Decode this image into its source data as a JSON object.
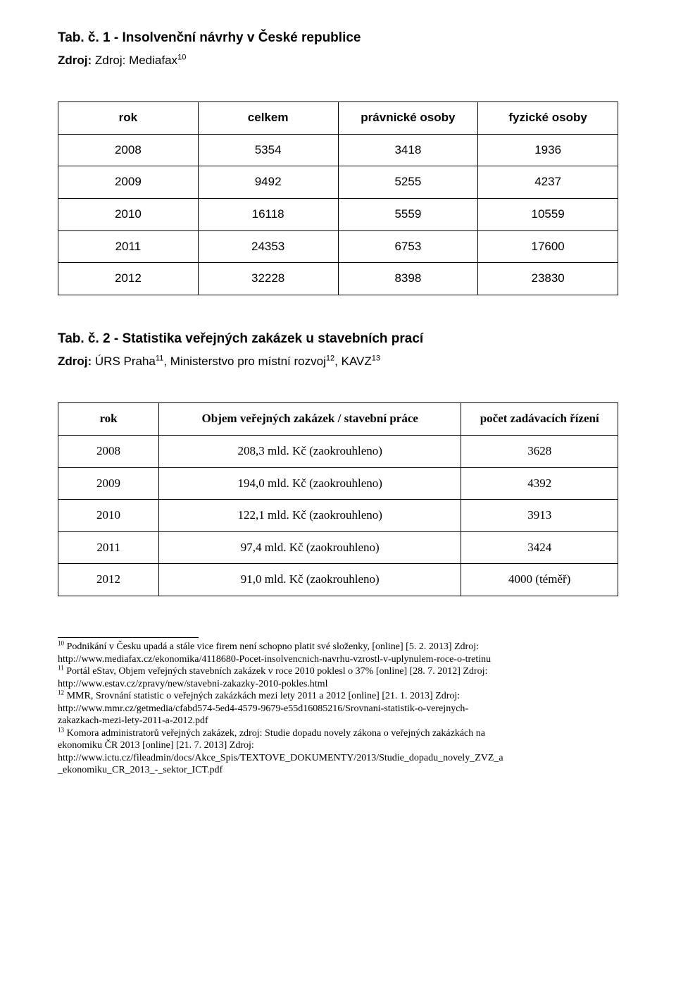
{
  "section1": {
    "heading": "Tab. č. 1 - Insolvenční návrhy v České republice",
    "source_label": "Zdroj:",
    "source_rest": "Zdroj: Mediafax",
    "source_sup": "10"
  },
  "table1": {
    "headers": [
      "rok",
      "celkem",
      "právnické osoby",
      "fyzické osoby"
    ],
    "rows": [
      [
        "2008",
        "5354",
        "3418",
        "1936"
      ],
      [
        "2009",
        "9492",
        "5255",
        "4237"
      ],
      [
        "2010",
        "16118",
        "5559",
        "10559"
      ],
      [
        "2011",
        "24353",
        "6753",
        "17600"
      ],
      [
        "2012",
        "32228",
        "8398",
        "23830"
      ]
    ]
  },
  "section2": {
    "heading": "Tab. č. 2 - Statistika veřejných zakázek u stavebních prací",
    "source_label": "Zdroj:",
    "source_rest_a": "ÚRS Praha",
    "source_sup_a": "11",
    "source_rest_b": ", Ministerstvo pro místní rozvoj",
    "source_sup_b": "12",
    "source_rest_c": ", KAVZ",
    "source_sup_c": "13"
  },
  "table2": {
    "headers": [
      "rok",
      "Objem veřejných zakázek / stavební práce",
      "počet zadávacích řízení"
    ],
    "rows": [
      [
        "2008",
        "208,3 mld. Kč (zaokrouhleno)",
        "3628"
      ],
      [
        "2009",
        "194,0 mld. Kč (zaokrouhleno)",
        "4392"
      ],
      [
        "2010",
        "122,1 mld. Kč (zaokrouhleno)",
        "3913"
      ],
      [
        "2011",
        "97,4 mld. Kč (zaokrouhleno)",
        "3424"
      ],
      [
        "2012",
        "91,0 mld. Kč (zaokrouhleno)",
        "4000 (téměř)"
      ]
    ],
    "col_widths": [
      "18%",
      "54%",
      "28%"
    ]
  },
  "footnotes": {
    "f10_sup": "10",
    "f10_a": " Podnikání v Česku upadá a stále vice firem není schopno platit své složenky, [online] [5. 2. 2013] Zdroj:",
    "f10_b": "http://www.mediafax.cz/ekonomika/4118680-Pocet-insolvencnich-navrhu-vzrostl-v-uplynulem-roce-o-tretinu",
    "f11_sup": "11",
    "f11_a": " Portál eStav, Objem veřejných stavebních zakázek v roce 2010 poklesl o 37% [online] [28. 7. 2012] Zdroj:",
    "f11_b": "http://www.estav.cz/zpravy/new/stavebni-zakazky-2010-pokles.html",
    "f12_sup": "12",
    "f12_a": " MMR, Srovnání statistic o veřejných zakázkách mezi lety 2011 a 2012 [online] [21. 1. 2013] Zdroj:",
    "f12_b": "http://www.mmr.cz/getmedia/cfabd574-5ed4-4579-9679-e55d16085216/Srovnani-statistik-o-verejnych-",
    "f12_c": "zakazkach-mezi-lety-2011-a-2012.pdf",
    "f13_sup": "13",
    "f13_a": " Komora administratorů veřejných zakázek, zdroj: Studie dopadu novely zákona o veřejných zakázkách na",
    "f13_b": "ekonomiku ČR 2013 [online] [21. 7. 2013] Zdroj:",
    "f13_c": "http://www.ictu.cz/fileadmin/docs/Akce_Spis/TEXTOVE_DOKUMENTY/2013/Studie_dopadu_novely_ZVZ_a",
    "f13_d": "_ekonomiku_CR_2013_-_sektor_ICT.pdf"
  },
  "colors": {
    "text": "#000000",
    "background": "#ffffff",
    "border": "#000000"
  }
}
